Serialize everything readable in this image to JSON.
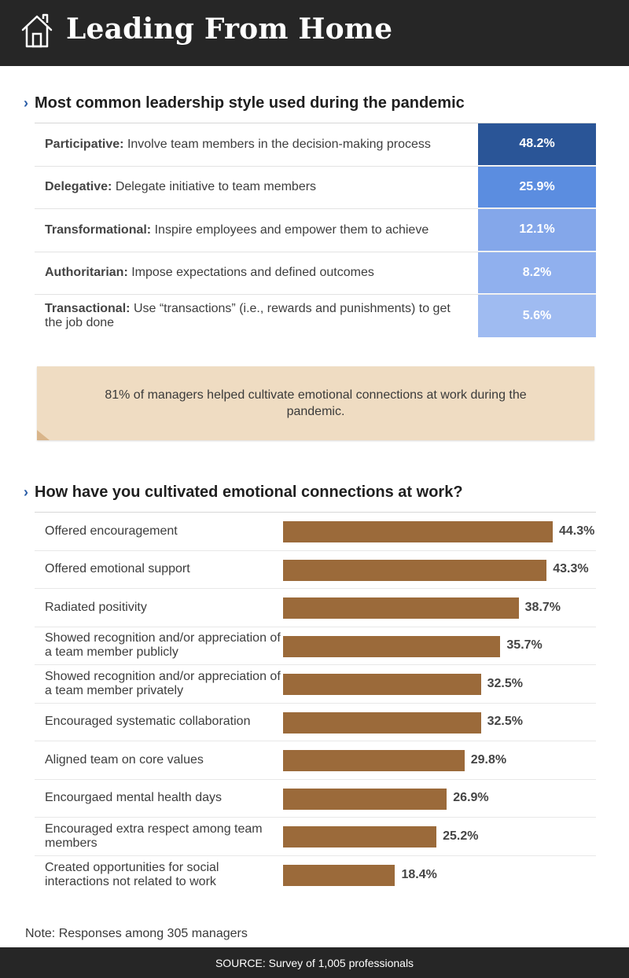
{
  "header": {
    "title": "Leading From Home"
  },
  "section1": {
    "heading": "Most common leadership style used during the pandemic",
    "rows": [
      {
        "name": "Participative:",
        "desc": "Involve team members in the decision-making process",
        "value": "48.2%",
        "color": "#2a5597"
      },
      {
        "name": "Delegative:",
        "desc": "Delegate initiative to team members",
        "value": "25.9%",
        "color": "#5b8de0"
      },
      {
        "name": "Transformational:",
        "desc": "Inspire employees and empower them to achieve",
        "value": "12.1%",
        "color": "#84a7ea"
      },
      {
        "name": "Authoritarian:",
        "desc": "Impose expectations and defined outcomes",
        "value": "8.2%",
        "color": "#90b0ee"
      },
      {
        "name": "Transactional:",
        "desc": "Use “transactions” (i.e., rewards and punishments) to get the job done",
        "value": "5.6%",
        "color": "#9fbbf1"
      }
    ]
  },
  "callout": {
    "text": "81% of managers helped cultivate emotional connections at work during the pandemic."
  },
  "section2": {
    "heading": "How have you cultivated emotional connections at work?"
  },
  "chart_data": {
    "type": "bar",
    "orientation": "horizontal",
    "categories": [
      "Offered encouragement",
      "Offered emotional support",
      "Radiated positivity",
      "Showed recognition and/or appreciation of a team member publicly",
      "Showed recognition and/or appreciation of a team member privately",
      "Encouraged systematic collaboration",
      "Aligned team on core values",
      "Encourgaed mental health days",
      "Encouraged extra respect among team members",
      "Created opportunities for social interactions not related to work"
    ],
    "values": [
      44.3,
      43.3,
      38.7,
      35.7,
      32.5,
      32.5,
      29.8,
      26.9,
      25.2,
      18.4
    ],
    "labels": [
      "44.3%",
      "43.3%",
      "38.7%",
      "35.7%",
      "32.5%",
      "32.5%",
      "29.8%",
      "26.9%",
      "25.2%",
      "18.4%"
    ],
    "bar_color": "#9b6a3a",
    "xlim": [
      0,
      44.3
    ]
  },
  "note": "Note: Responses among 305 managers",
  "footer": "SOURCE: Survey of 1,005 professionals",
  "colors": {
    "header_bg": "#262626",
    "accent": "#2b5ea8",
    "callout_bg": "#efdcc2"
  }
}
